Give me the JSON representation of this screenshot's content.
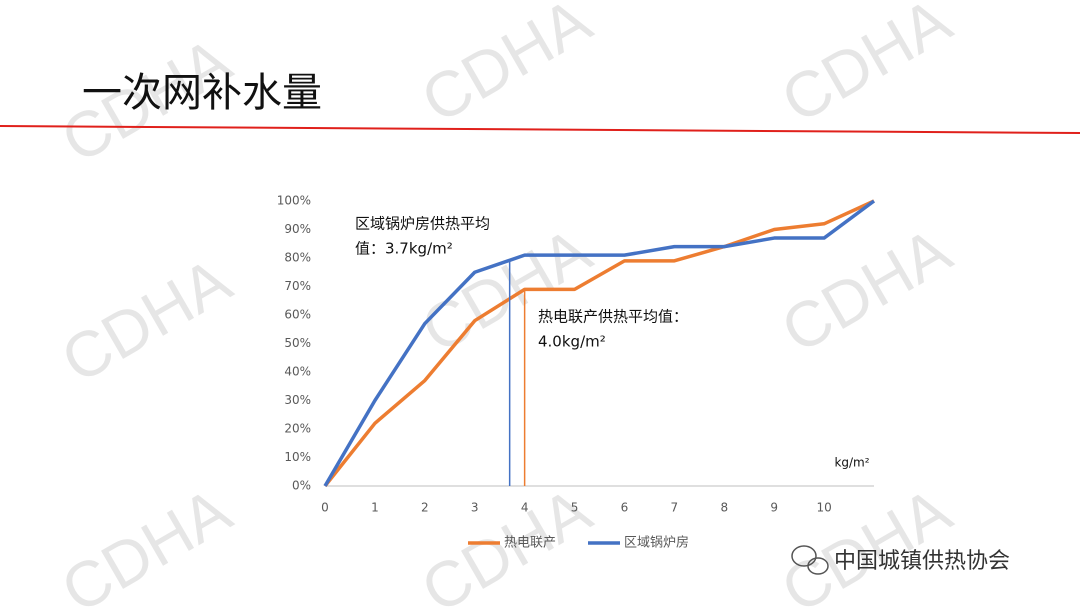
{
  "watermark": "CDHA",
  "slide_title": "一次网补水量",
  "footer": "中国城镇供热协会",
  "chart_data": {
    "type": "line",
    "x": [
      0,
      1,
      2,
      3,
      4,
      5,
      6,
      7,
      8,
      9,
      10,
      11
    ],
    "xlim": [
      0,
      11
    ],
    "xticks": [
      0,
      1,
      2,
      3,
      4,
      5,
      6,
      7,
      8,
      9,
      10
    ],
    "x_label": "kg/m²",
    "ylim": [
      0,
      100
    ],
    "yticks": [
      {
        "value": 0,
        "label": "0%"
      },
      {
        "value": 10,
        "label": "10%"
      },
      {
        "value": 20,
        "label": "20%"
      },
      {
        "value": 30,
        "label": "30%"
      },
      {
        "value": 40,
        "label": "40%"
      },
      {
        "value": 50,
        "label": "50%"
      },
      {
        "value": 60,
        "label": "60%"
      },
      {
        "value": 70,
        "label": "70%"
      },
      {
        "value": 80,
        "label": "80%"
      },
      {
        "value": 90,
        "label": "90%"
      },
      {
        "value": 100,
        "label": "100%"
      }
    ],
    "grid": false,
    "legend": "bottom",
    "series": [
      {
        "name": "热电联产",
        "color": "#ed7d31",
        "values": [
          0,
          22,
          37,
          58,
          69,
          69,
          79,
          79,
          84,
          90,
          92,
          100
        ]
      },
      {
        "name": "区域锅炉房",
        "color": "#4472c4",
        "values": [
          0,
          30,
          57,
          75,
          81,
          81,
          81,
          84,
          84,
          87,
          87,
          100
        ]
      }
    ],
    "reference_lines": [
      {
        "x": 3.7,
        "color": "#4472c4",
        "series": 1,
        "text": [
          "区域锅炉房供热平均",
          "值：3.7kg/m²"
        ]
      },
      {
        "x": 4.0,
        "color": "#ed7d31",
        "series": 0,
        "text": [
          "热电联产供热平均值：",
          "4.0kg/m²"
        ]
      }
    ]
  }
}
